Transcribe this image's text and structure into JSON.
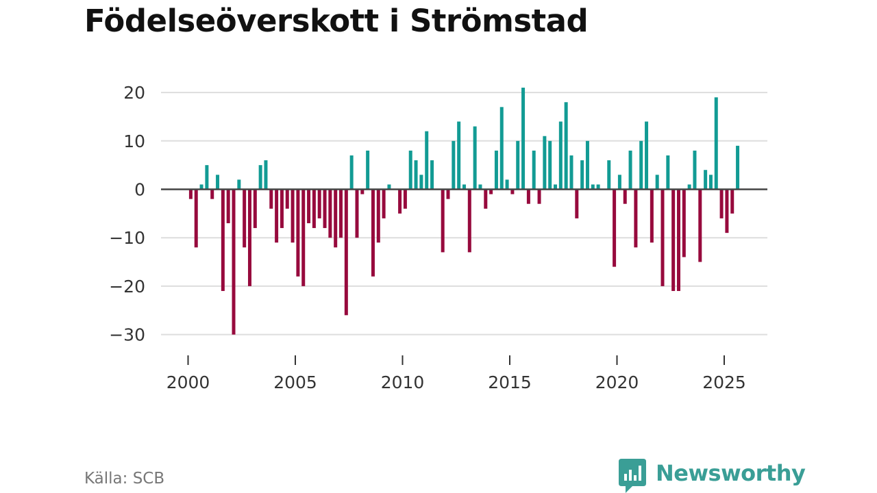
{
  "title": "Födelseöverskott i Strömstad",
  "source": "Källa: SCB",
  "brand": {
    "name": "Newsworthy",
    "icon": "newsworthy-logo-icon"
  },
  "colors": {
    "positive": "#129b94",
    "negative": "#970a3d",
    "grid": "#dddddd",
    "zero_line": "#444444",
    "brand": "#3a9e96"
  },
  "chart_data": {
    "type": "bar",
    "title": "Födelseöverskott i Strömstad",
    "xlabel": "",
    "ylabel": "",
    "ylim": [
      -30,
      21
    ],
    "yticks": [
      20,
      10,
      0,
      -10,
      -20,
      -30
    ],
    "ytick_labels": [
      "20",
      "10",
      "0",
      "−10",
      "−20",
      "−30"
    ],
    "xticks": [
      2000,
      2005,
      2010,
      2015,
      2020,
      2025
    ],
    "xtick_labels": [
      "2000",
      "2005",
      "2010",
      "2015",
      "2020",
      "2025"
    ],
    "x_start": 2000,
    "period": "quarter",
    "grid": true,
    "values": [
      -2,
      -12,
      1,
      5,
      -2,
      3,
      -21,
      -7,
      -30,
      2,
      -12,
      -20,
      -8,
      5,
      6,
      -4,
      -11,
      -8,
      -4,
      -11,
      -18,
      -20,
      -7,
      -8,
      -6,
      -8,
      -10,
      -12,
      -10,
      -26,
      7,
      -10,
      -1,
      8,
      -18,
      -11,
      -6,
      1,
      0,
      -5,
      -4,
      8,
      6,
      3,
      12,
      6,
      0,
      -13,
      -2,
      10,
      14,
      1,
      -13,
      13,
      1,
      -4,
      -1,
      8,
      17,
      2,
      -1,
      10,
      21,
      -3,
      8,
      -3,
      11,
      10,
      1,
      14,
      18,
      7,
      -6,
      6,
      10,
      1,
      1,
      0,
      6,
      -16,
      3,
      -3,
      8,
      -12,
      10,
      14,
      -11,
      3,
      -20,
      7,
      -21,
      -21,
      -14,
      1,
      8,
      -15,
      4,
      3,
      19,
      -6,
      -9,
      -5,
      9
    ]
  }
}
